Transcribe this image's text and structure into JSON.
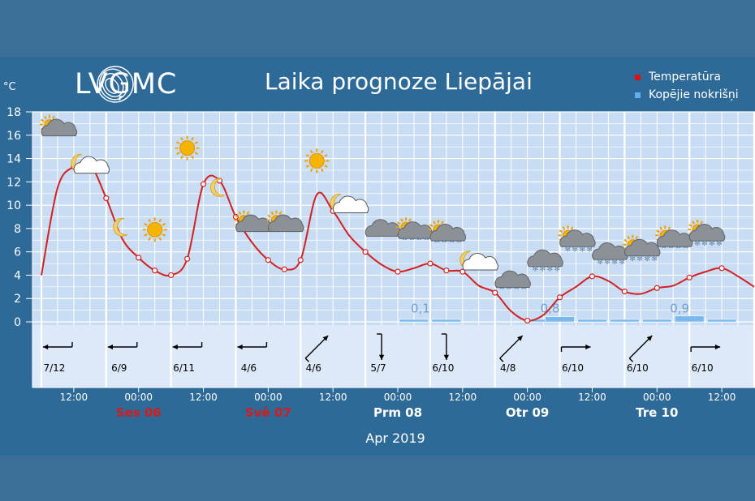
{
  "header": {
    "logo_text": "LVĢMC",
    "title": "Laika prognoze Liepājai",
    "unit": "°C"
  },
  "legend": [
    {
      "label": "Temperatūra",
      "color": "#e01010"
    },
    {
      "label": "Kopējie nokrišņi",
      "color": "#5fb0ec"
    }
  ],
  "colors": {
    "plot_bg": "#c8dcf4",
    "wind_bg": "#dde9f8",
    "grid": "#ffffff",
    "temperature_line": "#d42020",
    "precip_bar": "#78b8ec",
    "weekday_red": "#d31c1c",
    "weekday_white": "#ffffff"
  },
  "chart_data": {
    "type": "line",
    "title": "Laika prognoze Liepājai",
    "ylabel": "°C",
    "ylim": [
      0,
      18
    ],
    "yticks": [
      0,
      2,
      4,
      6,
      8,
      10,
      12,
      14,
      16,
      18
    ],
    "grid": true,
    "legend_position": "top-right",
    "x_unit": "hours from Apr 05 2019 06:00",
    "xlim": [
      0,
      132
    ],
    "xticks": [
      {
        "x": 6,
        "label": "12:00"
      },
      {
        "x": 18,
        "label": "00:00"
      },
      {
        "x": 30,
        "label": "12:00"
      },
      {
        "x": 42,
        "label": "00:00"
      },
      {
        "x": 54,
        "label": "12:00"
      },
      {
        "x": 66,
        "label": "00:00"
      },
      {
        "x": 78,
        "label": "12:00"
      },
      {
        "x": 90,
        "label": "00:00"
      },
      {
        "x": 102,
        "label": "12:00"
      },
      {
        "x": 114,
        "label": "00:00"
      },
      {
        "x": 126,
        "label": "12:00"
      }
    ],
    "day_labels": [
      {
        "x": 18,
        "label": "Ses 06",
        "weekend": true
      },
      {
        "x": 42,
        "label": "Svē 07",
        "weekend": true
      },
      {
        "x": 66,
        "label": "Prm 08",
        "weekend": false
      },
      {
        "x": 90,
        "label": "Otr 09",
        "weekend": false
      },
      {
        "x": 114,
        "label": "Tre 10",
        "weekend": false
      }
    ],
    "month_label": "Apr 2019",
    "series": [
      {
        "name": "Temperatūra",
        "color": "#d42020",
        "x": [
          0,
          3,
          6,
          9,
          12,
          15,
          18,
          21,
          24,
          27,
          30,
          33,
          36,
          39,
          42,
          45,
          48,
          51,
          54,
          57,
          60,
          63,
          66,
          69,
          72,
          75,
          78,
          81,
          84,
          87,
          90,
          93,
          96,
          99,
          102,
          105,
          108,
          111,
          114,
          117,
          120,
          123,
          126,
          129,
          132
        ],
        "y": [
          4.0,
          11.5,
          13.3,
          13.5,
          10.6,
          7.1,
          5.5,
          4.4,
          4.0,
          5.4,
          11.8,
          12.1,
          9.0,
          6.8,
          5.3,
          4.5,
          5.3,
          10.9,
          9.5,
          7.4,
          6.0,
          4.9,
          4.3,
          4.6,
          5.0,
          4.4,
          4.3,
          3.1,
          2.5,
          0.9,
          0.1,
          0.6,
          2.1,
          3.0,
          3.9,
          3.5,
          2.6,
          2.4,
          2.9,
          3.1,
          3.8,
          4.3,
          4.6,
          3.9,
          3.0
        ],
        "markers": [
          false,
          false,
          true,
          true,
          true,
          false,
          true,
          true,
          true,
          true,
          true,
          true,
          true,
          false,
          true,
          true,
          true,
          false,
          true,
          false,
          true,
          false,
          true,
          false,
          true,
          true,
          true,
          false,
          true,
          false,
          true,
          false,
          true,
          false,
          true,
          false,
          true,
          false,
          true,
          false,
          true,
          false,
          true,
          false,
          false
        ]
      },
      {
        "name": "Kopējie nokrišņi",
        "type": "bar",
        "color": "#78b8ec",
        "values": [
          {
            "x": 69,
            "value": 0.1
          },
          {
            "x": 75,
            "value": 0.1
          },
          {
            "x": 93,
            "value": 0.1
          },
          {
            "x": 96,
            "value": 0.8
          },
          {
            "x": 102,
            "value": 0.1
          },
          {
            "x": 108,
            "value": 0.1
          },
          {
            "x": 114,
            "value": 0.1
          },
          {
            "x": 120,
            "value": 0.9
          },
          {
            "x": 126,
            "value": 0.1
          }
        ]
      }
    ],
    "precip_labels": [
      {
        "x": 72,
        "label": "0,1"
      },
      {
        "x": 96,
        "label": "0,8"
      },
      {
        "x": 120,
        "label": "0,9"
      }
    ],
    "weather_icons": [
      {
        "x": 3,
        "y": 16.5,
        "icon": "partly-cloudy-icon"
      },
      {
        "x": 9,
        "y": 13.3,
        "icon": "cloud-moon-icon"
      },
      {
        "x": 15,
        "y": 8.1,
        "icon": "moon-icon"
      },
      {
        "x": 21,
        "y": 7.9,
        "icon": "sun-icon"
      },
      {
        "x": 27,
        "y": 14.9,
        "icon": "sun-icon"
      },
      {
        "x": 33,
        "y": 11.5,
        "icon": "moon-icon"
      },
      {
        "x": 39,
        "y": 8.3,
        "icon": "partly-cloudy-icon"
      },
      {
        "x": 45,
        "y": 8.3,
        "icon": "partly-cloudy-icon"
      },
      {
        "x": 51,
        "y": 13.8,
        "icon": "sun-icon"
      },
      {
        "x": 57,
        "y": 9.9,
        "icon": "cloud-moon-icon"
      },
      {
        "x": 63,
        "y": 7.9,
        "icon": "cloudy-icon"
      },
      {
        "x": 69,
        "y": 7.7,
        "icon": "partly-cloudy-rain-icon"
      },
      {
        "x": 75,
        "y": 7.5,
        "icon": "partly-cloudy-rain-icon"
      },
      {
        "x": 81,
        "y": 5.0,
        "icon": "cloud-moon-icon"
      },
      {
        "x": 87,
        "y": 3.5,
        "icon": "cloudy-rain-icon"
      },
      {
        "x": 93,
        "y": 5.3,
        "icon": "cloudy-snow-icon"
      },
      {
        "x": 99,
        "y": 7.0,
        "icon": "partly-cloudy-snow-icon"
      },
      {
        "x": 105,
        "y": 5.9,
        "icon": "cloudy-snow-icon"
      },
      {
        "x": 111,
        "y": 6.2,
        "icon": "partly-cloudy-snow-icon"
      },
      {
        "x": 117,
        "y": 7.0,
        "icon": "partly-cloudy-rain-icon"
      },
      {
        "x": 123,
        "y": 7.5,
        "icon": "partly-cloudy-snow-icon"
      }
    ],
    "wind": [
      {
        "x": 3,
        "label": "7/12",
        "dir": "east"
      },
      {
        "x": 15,
        "label": "6/9",
        "dir": "east"
      },
      {
        "x": 27,
        "label": "6/11",
        "dir": "east"
      },
      {
        "x": 39,
        "label": "4/6",
        "dir": "east"
      },
      {
        "x": 51,
        "label": "4/6",
        "dir": "southwest"
      },
      {
        "x": 63,
        "label": "5/7",
        "dir": "north"
      },
      {
        "x": 75,
        "label": "6/10",
        "dir": "north"
      },
      {
        "x": 87,
        "label": "4/8",
        "dir": "southwest"
      },
      {
        "x": 99,
        "label": "6/10",
        "dir": "west"
      },
      {
        "x": 111,
        "label": "6/10",
        "dir": "southwest"
      },
      {
        "x": 123,
        "label": "6/10",
        "dir": "west"
      }
    ]
  }
}
